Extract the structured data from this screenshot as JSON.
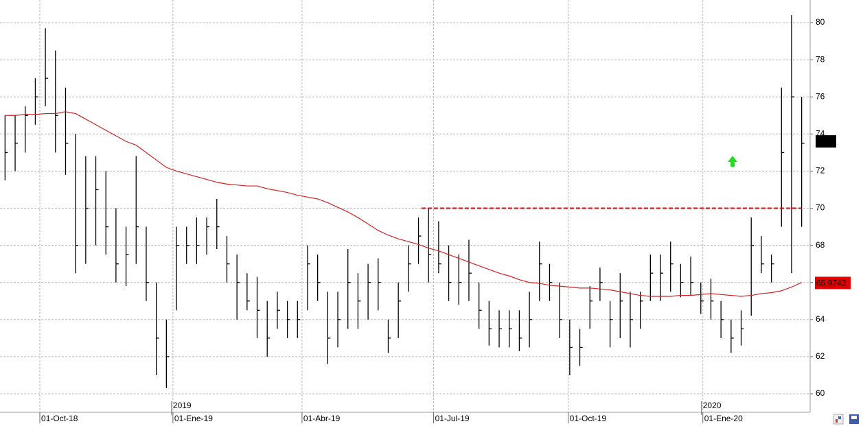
{
  "chart_data": {
    "type": "ohlc",
    "high": [
      75,
      75,
      75.5,
      77,
      79.7,
      78.5,
      76.5,
      74,
      72.8,
      72.8,
      72,
      70,
      69,
      72.8,
      69,
      66,
      64,
      69,
      69,
      69.5,
      69.5,
      70.5,
      68.5,
      67.5,
      66.5,
      66.3,
      65,
      65.5,
      65,
      65,
      68,
      67.5,
      65.5,
      65.5,
      67.8,
      66.5,
      67,
      67.3,
      64,
      66,
      68,
      69.5,
      70,
      69.3,
      68,
      67.5,
      68.3,
      66,
      65,
      64.5,
      64.5,
      64.5,
      65.5,
      68.2,
      67,
      66,
      64,
      63.5,
      65.8,
      66.8,
      65,
      66.5,
      65.5,
      65.5,
      67.5,
      67.5,
      68.2,
      67,
      67.4,
      66,
      66.2,
      65,
      64,
      64.5,
      69.5,
      68.5,
      67.5,
      76.5,
      80.4,
      76
    ],
    "low": [
      71.5,
      72,
      73,
      74.5,
      75.5,
      73,
      71.8,
      66.5,
      67,
      68,
      67.5,
      66,
      65.8,
      67,
      65,
      61,
      60.3,
      64.5,
      67,
      67,
      67.5,
      67.8,
      66,
      64,
      64.5,
      63,
      62,
      63.5,
      63,
      63,
      64.5,
      65,
      61.6,
      62.5,
      63.5,
      63.5,
      64,
      64.5,
      62.2,
      63,
      65.5,
      67,
      66,
      66.5,
      65,
      64.8,
      65,
      63.5,
      62.6,
      62.5,
      62.5,
      62.3,
      62.5,
      65,
      65,
      63,
      61,
      61.5,
      63.5,
      65,
      62.5,
      63,
      62.5,
      63.5,
      65,
      65,
      65.5,
      65.2,
      65.3,
      64.3,
      64,
      63,
      62.2,
      62.6,
      64.2,
      66.5,
      66,
      69,
      66.5,
      69
    ],
    "close": [
      73,
      73.5,
      75,
      76,
      77,
      75,
      73.5,
      68,
      70,
      71,
      69,
      67,
      67.5,
      69,
      66,
      63,
      62,
      68,
      68,
      68,
      69,
      69,
      67,
      66,
      65,
      64.5,
      63,
      64.5,
      64,
      64,
      67,
      66,
      63,
      64,
      66,
      65,
      66,
      66,
      63,
      65,
      67,
      68.5,
      67.5,
      67,
      66,
      66,
      66.5,
      64.5,
      63.5,
      63.5,
      63.5,
      63,
      64,
      67,
      66,
      64,
      62.5,
      62.5,
      65,
      66,
      64,
      65,
      64,
      65,
      66.5,
      66.5,
      67,
      66,
      66,
      65,
      65,
      64,
      63,
      63.5,
      68,
      67,
      67,
      73,
      76,
      73.5
    ],
    "moving_average": {
      "color": "#d42020",
      "values": [
        75,
        75,
        75.05,
        75.05,
        75.1,
        75.1,
        75.2,
        75.1,
        74.8,
        74.5,
        74.2,
        73.9,
        73.6,
        73.4,
        73,
        72.6,
        72.2,
        72,
        71.85,
        71.7,
        71.55,
        71.4,
        71.3,
        71.25,
        71.2,
        71.2,
        71.05,
        70.95,
        70.85,
        70.7,
        70.6,
        70.5,
        70.3,
        70.05,
        69.8,
        69.5,
        69.15,
        68.8,
        68.55,
        68.35,
        68.2,
        68.05,
        67.85,
        67.7,
        67.5,
        67.3,
        67.1,
        66.9,
        66.7,
        66.5,
        66.35,
        66.15,
        66,
        65.95,
        65.85,
        65.8,
        65.75,
        65.7,
        65.7,
        65.65,
        65.6,
        65.5,
        65.4,
        65.3,
        65.25,
        65.25,
        65.25,
        65.3,
        65.3,
        65.35,
        65.4,
        65.35,
        65.3,
        65.25,
        65.3,
        65.4,
        65.45,
        65.55,
        65.75,
        66
      ],
      "last_label": 65.9742
    },
    "last_price": 73.6,
    "level": {
      "value": 70,
      "x": [
        41.3,
        79
      ],
      "color": "#e00000"
    },
    "xlim": [
      -0.5,
      79.5
    ],
    "xticks": [
      {
        "value": 3.45,
        "label": "01-Oct-18"
      },
      {
        "value": 16.65,
        "label": "01-Ene-19"
      },
      {
        "value": 29.45,
        "label": "01-Abr-19"
      },
      {
        "value": 42.5,
        "label": "01-Jul-19"
      },
      {
        "value": 55.85,
        "label": "01-Oct-19"
      },
      {
        "value": 69.2,
        "label": "01-Ene-20"
      }
    ],
    "year_ticks": [
      {
        "value": 16.65,
        "label": "2019"
      },
      {
        "value": 69.2,
        "label": "2020"
      }
    ],
    "ylim": [
      59.04,
      81.22
    ],
    "yticks": [
      60,
      62,
      64,
      66,
      68,
      70,
      72,
      74,
      76,
      78,
      80
    ],
    "grid": true
  }
}
